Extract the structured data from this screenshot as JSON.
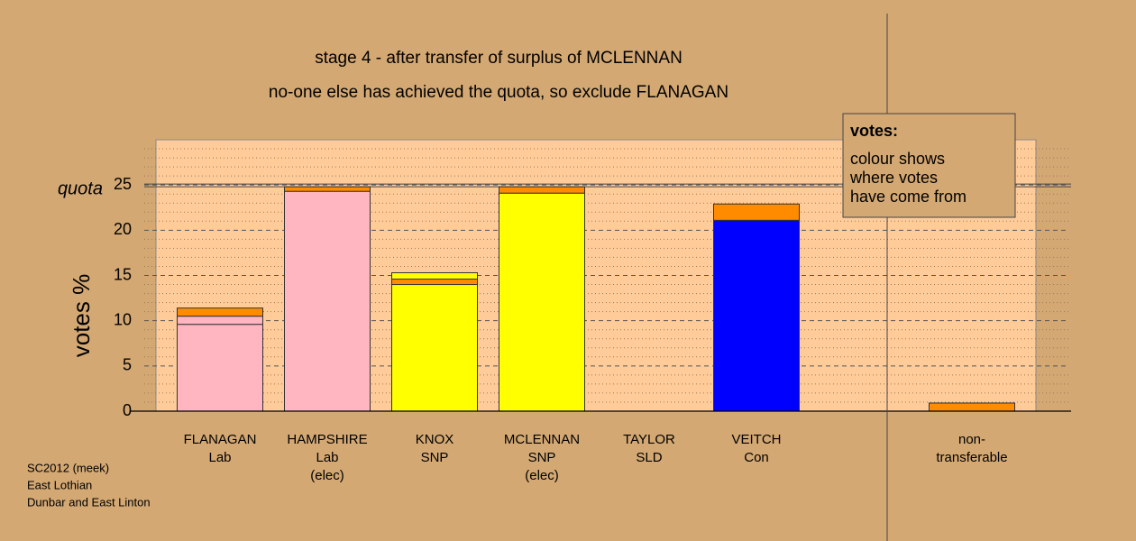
{
  "chart_data": {
    "type": "bar",
    "stacked": true,
    "title": "stage 4 - after transfer of surplus of MCLENNAN",
    "subtitle": "no-one else has achieved the quota, so exclude FLANAGAN",
    "ylabel": "votes %",
    "quota": {
      "label": "quota",
      "value": 25
    },
    "categories": [
      [
        "FLANAGAN",
        "Lab"
      ],
      [
        "HAMPSHIRE",
        "Lab",
        "(elec)"
      ],
      [
        "KNOX",
        "SNP"
      ],
      [
        "MCLENNAN",
        "SNP",
        "(elec)"
      ],
      [
        "TAYLOR",
        "SLD"
      ],
      [
        "VEITCH",
        "Con"
      ],
      [
        "non-",
        "transferable"
      ]
    ],
    "series": [
      {
        "colors": [
          "#ffb6c1",
          "#ffb6c1",
          "#ffff00",
          "#ffff00",
          "#ffa500",
          "#0000ff",
          "#ff8c00"
        ],
        "values": [
          9.6,
          24.3,
          14.0,
          24.1,
          0,
          21.1,
          0
        ]
      },
      {
        "colors": [
          "#ffb6c1",
          "#ff8c00",
          "#ff8c00",
          "#ff8c00",
          "#ff8c00",
          "#ff8c00",
          "#ff8c00"
        ],
        "values": [
          0.9,
          0.5,
          0.6,
          0.7,
          0,
          1.8,
          0.9
        ]
      },
      {
        "colors": [
          "#ff8c00",
          "#ff8c00",
          "#ffff00",
          "#ff8c00",
          "#ff8c00",
          "#ff8c00",
          "#ff8c00"
        ],
        "values": [
          0.9,
          0,
          0.7,
          0,
          0,
          0,
          0
        ]
      }
    ],
    "ylim": [
      0,
      30
    ],
    "yticks": [
      0,
      5,
      10,
      15,
      20,
      25
    ],
    "minor_yticks": [
      1,
      2,
      3,
      4,
      6,
      7,
      8,
      9,
      11,
      12,
      13,
      14,
      16,
      17,
      18,
      19,
      21,
      22,
      23,
      24,
      26,
      27,
      28,
      29
    ],
    "grid": true,
    "legend": {
      "title": "votes:",
      "lines": [
        "colour shows",
        "where votes",
        "have come from"
      ]
    },
    "footer": [
      "SC2012 (meek)",
      "East Lothian",
      "Dunbar and East Linton"
    ]
  }
}
